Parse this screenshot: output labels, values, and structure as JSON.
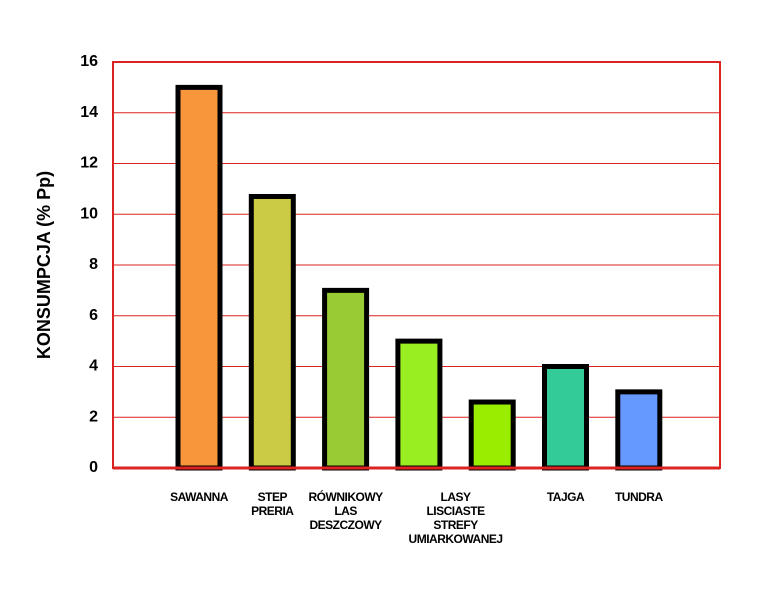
{
  "chart_data": {
    "type": "bar",
    "y_label": "KONSUMPCJA (% Pp)",
    "categories": [
      "SAWANNA",
      "STEP\nPRERIA",
      "RÓWNIKOWY\nLAS\nDESZCZOWY",
      "LASY\nLISCIASTE\nSTREFY\nUMIARKOWANEJ",
      null,
      "TAJGA",
      "TUNDRA"
    ],
    "values": [
      15,
      10.7,
      7,
      5,
      2.6,
      4,
      3
    ],
    "colors": [
      "#f7963a",
      "#cccc44",
      "#99cc33",
      "#99ee22",
      "#99ee00",
      "#33cc99",
      "#6699ff"
    ],
    "ylim": [
      0,
      16
    ],
    "yticks": [
      0,
      2,
      4,
      6,
      8,
      10,
      12,
      14,
      16
    ],
    "grid": true,
    "grid_color": "#dd2222"
  }
}
